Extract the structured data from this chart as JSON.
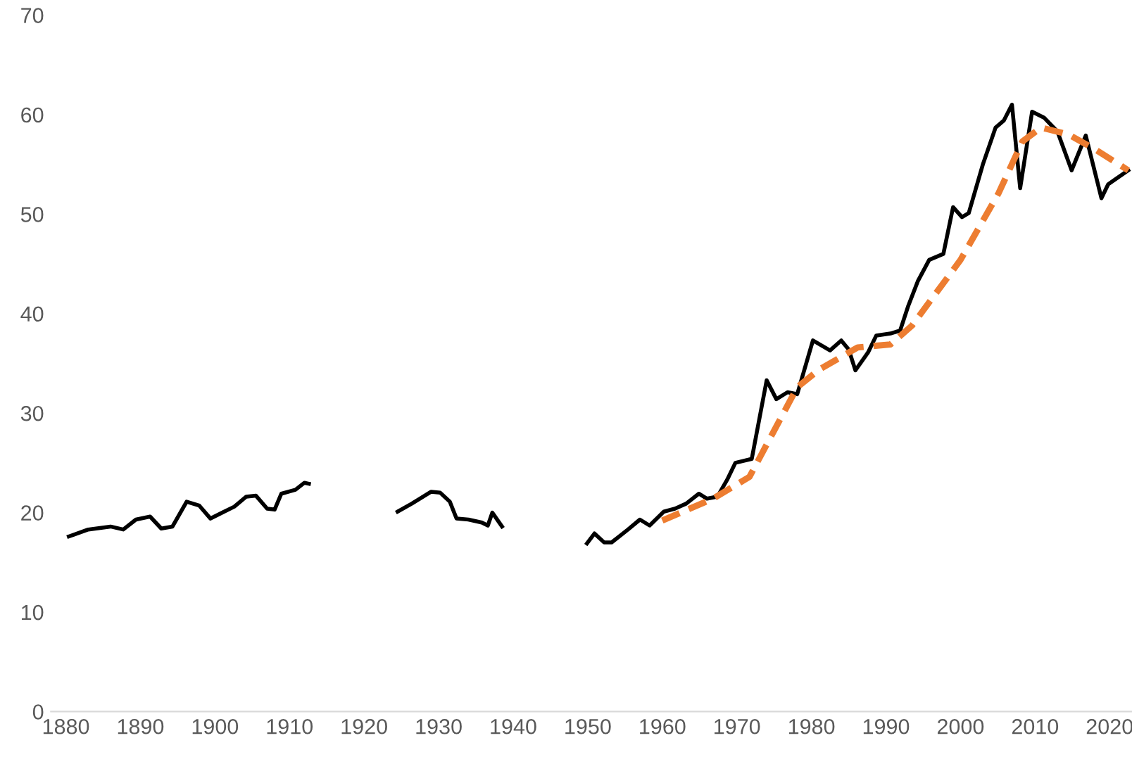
{
  "chart_data": {
    "type": "line",
    "xlim": [
      1878,
      2023
    ],
    "xticks": [
      1880,
      1890,
      1900,
      1910,
      1920,
      1930,
      1940,
      1950,
      1960,
      1970,
      1980,
      1990,
      2000,
      2010,
      2020
    ],
    "ylim": [
      0,
      70
    ],
    "yticks": [
      0,
      10,
      20,
      30,
      40,
      50,
      60,
      70
    ],
    "grid": false,
    "series": [
      {
        "color": "#000000",
        "line_style": "solid",
        "x": [
          1880.4,
          1883,
          1886,
          1887.7,
          1889.4,
          1891.3,
          1892.8,
          1894.3,
          1896.2,
          1897.9,
          1899.4,
          1901,
          1902.6,
          1904.2,
          1905.5,
          1907,
          1908,
          1908.9,
          1910.8,
          1912,
          1912.6,
          1918,
          1924.5,
          1926.4,
          1929,
          1930.2,
          1931.5,
          1932.4,
          1934,
          1935.8,
          1936.6,
          1937.2,
          1938.5,
          1944,
          1949.9,
          1950.9,
          1952.2,
          1953.2,
          1955.4,
          1957,
          1958.3,
          1960.2,
          1961.7,
          1963.2,
          1964.9,
          1966,
          1967.4,
          1968.7,
          1969.8,
          1972,
          1974,
          1975.3,
          1976.8,
          1978.1,
          1980.2,
          1982.5,
          1984,
          1985,
          1985.9,
          1987.6,
          1988.7,
          1990.6,
          1991.9,
          1993,
          1994.3,
          1995.8,
          1997.7,
          1999,
          2000.2,
          2001.1,
          2003,
          2004.7,
          2005.8,
          2006.9,
          2008,
          2009.6,
          2011.2,
          2013,
          2014.9,
          2016.8,
          2018.9,
          2019.8,
          2022.5
        ],
        "values": [
          17.6,
          18.3,
          18.6,
          18.3,
          19.3,
          19.6,
          18.4,
          18.6,
          21.1,
          20.7,
          19.4,
          20,
          20.6,
          21.6,
          21.7,
          20.4,
          20.3,
          21.9,
          22.3,
          23,
          22.9,
          null,
          20.1,
          20.9,
          22.1,
          22,
          21.1,
          19.4,
          19.3,
          19,
          18.7,
          20,
          18.6,
          null,
          16.9,
          17.9,
          17,
          17,
          18.3,
          19.3,
          18.7,
          20.1,
          20.4,
          20.9,
          21.9,
          21.4,
          21.6,
          23.3,
          25,
          25.4,
          33.3,
          31.4,
          32.1,
          31.9,
          37.3,
          36.3,
          37.3,
          36.4,
          34.3,
          36.1,
          37.8,
          38,
          38.3,
          40.8,
          43.3,
          45.4,
          46,
          50.7,
          49.7,
          50.1,
          55,
          58.7,
          59.4,
          61,
          52.6,
          60.3,
          59.7,
          58.3,
          54.4,
          57.9,
          51.6,
          53,
          54.4
        ]
      },
      {
        "color": "#ed7d31",
        "line_style": "dashed",
        "x": [
          1960,
          1966.8,
          1971.7,
          1978.1,
          1981.1,
          1986.2,
          1990.6,
          1993.5,
          2000,
          2005.1,
          2008.3,
          2010.8,
          2014.5,
          2018.3,
          2022.5
        ],
        "values": [
          19.2,
          21.4,
          23.6,
          32.6,
          34.4,
          36.6,
          36.9,
          38.8,
          45.4,
          52.1,
          57.3,
          58.7,
          58,
          56.4,
          54.4
        ]
      }
    ]
  }
}
